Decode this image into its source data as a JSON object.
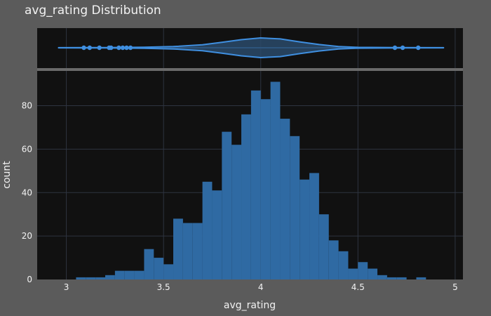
{
  "chart_data": {
    "type": "bar",
    "title": "avg_rating Distribution",
    "xlabel": "avg_rating",
    "ylabel": "count",
    "xlim": [
      2.85,
      5.04
    ],
    "ylim": [
      0,
      96
    ],
    "x_ticks": [
      {
        "value": 3,
        "label": "3"
      },
      {
        "value": 3.5,
        "label": "3.5"
      },
      {
        "value": 4,
        "label": "4"
      },
      {
        "value": 4.5,
        "label": "4.5"
      },
      {
        "value": 5,
        "label": "5"
      }
    ],
    "y_ticks": [
      {
        "value": 0,
        "label": "0"
      },
      {
        "value": 20,
        "label": "20"
      },
      {
        "value": 40,
        "label": "40"
      },
      {
        "value": 60,
        "label": "60"
      },
      {
        "value": 80,
        "label": "80"
      }
    ],
    "grid": true,
    "bin_width": 0.05,
    "bins": [
      {
        "x0": 3.05,
        "count": 1
      },
      {
        "x0": 3.1,
        "count": 1
      },
      {
        "x0": 3.15,
        "count": 1
      },
      {
        "x0": 3.2,
        "count": 2
      },
      {
        "x0": 3.25,
        "count": 4
      },
      {
        "x0": 3.3,
        "count": 4
      },
      {
        "x0": 3.35,
        "count": 4
      },
      {
        "x0": 3.4,
        "count": 14
      },
      {
        "x0": 3.45,
        "count": 10
      },
      {
        "x0": 3.5,
        "count": 7
      },
      {
        "x0": 3.55,
        "count": 28
      },
      {
        "x0": 3.6,
        "count": 26
      },
      {
        "x0": 3.65,
        "count": 26
      },
      {
        "x0": 3.7,
        "count": 45
      },
      {
        "x0": 3.75,
        "count": 41
      },
      {
        "x0": 3.8,
        "count": 68
      },
      {
        "x0": 3.85,
        "count": 62
      },
      {
        "x0": 3.9,
        "count": 76
      },
      {
        "x0": 3.95,
        "count": 87
      },
      {
        "x0": 4.0,
        "count": 83
      },
      {
        "x0": 4.05,
        "count": 91
      },
      {
        "x0": 4.1,
        "count": 74
      },
      {
        "x0": 4.15,
        "count": 66
      },
      {
        "x0": 4.2,
        "count": 46
      },
      {
        "x0": 4.25,
        "count": 49
      },
      {
        "x0": 4.3,
        "count": 30
      },
      {
        "x0": 4.35,
        "count": 18
      },
      {
        "x0": 4.4,
        "count": 13
      },
      {
        "x0": 4.45,
        "count": 5
      },
      {
        "x0": 4.5,
        "count": 8
      },
      {
        "x0": 4.55,
        "count": 5
      },
      {
        "x0": 4.6,
        "count": 2
      },
      {
        "x0": 4.65,
        "count": 1
      },
      {
        "x0": 4.7,
        "count": 1
      },
      {
        "x0": 4.8,
        "count": 1
      }
    ],
    "marginal_violin": {
      "min": 2.96,
      "max": 4.94,
      "density": [
        {
          "x": 2.96,
          "d": 0.01
        },
        {
          "x": 3.2,
          "d": 0.02
        },
        {
          "x": 3.4,
          "d": 0.05
        },
        {
          "x": 3.55,
          "d": 0.12
        },
        {
          "x": 3.7,
          "d": 0.3
        },
        {
          "x": 3.8,
          "d": 0.55
        },
        {
          "x": 3.9,
          "d": 0.82
        },
        {
          "x": 4.0,
          "d": 1.0
        },
        {
          "x": 4.1,
          "d": 0.9
        },
        {
          "x": 4.2,
          "d": 0.6
        },
        {
          "x": 4.3,
          "d": 0.33
        },
        {
          "x": 4.4,
          "d": 0.12
        },
        {
          "x": 4.5,
          "d": 0.04
        },
        {
          "x": 4.7,
          "d": 0.02
        },
        {
          "x": 4.94,
          "d": 0.01
        }
      ],
      "outliers": [
        3.09,
        3.12,
        3.17,
        3.22,
        3.23,
        3.27,
        3.29,
        3.31,
        3.33,
        4.69,
        4.73,
        4.81
      ]
    },
    "colors": {
      "bar": "#2f6aa3",
      "violin_line": "#3f8fe0",
      "violin_fill": "#2a4a6a",
      "plot_bg": "#111111",
      "page_bg": "#5b5b5b",
      "grid": "#2e3440",
      "text": "#f2f2f2"
    }
  }
}
